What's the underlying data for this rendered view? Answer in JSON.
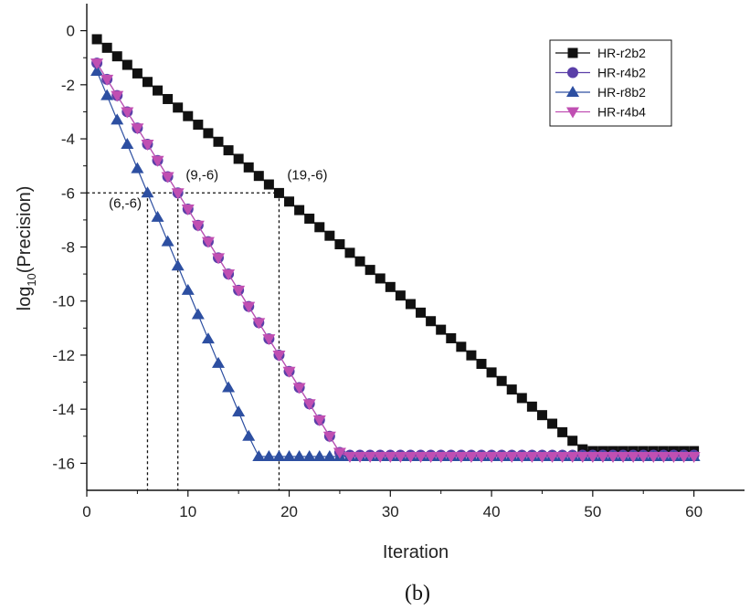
{
  "chart_data": {
    "type": "line",
    "title": "",
    "xlabel": "Iteration",
    "ylabel_main": "log",
    "ylabel_sub": "10",
    "ylabel_rest": "(Precision)",
    "xlim": [
      0,
      65
    ],
    "ylim": [
      -17,
      1
    ],
    "xticks": [
      0,
      10,
      20,
      30,
      40,
      50,
      60
    ],
    "yticks": [
      0,
      -2,
      -4,
      -6,
      -8,
      -10,
      -12,
      -14,
      -16
    ],
    "grid": false,
    "legend_position": "top-right",
    "caption": "(b)",
    "series": [
      {
        "name": "HR-r2b2",
        "color": "#111111",
        "marker": "square",
        "slope": -0.316,
        "intercept": 0.0,
        "floor": -15.55,
        "x_start": 1,
        "x_end": 60
      },
      {
        "name": "HR-r4b2",
        "color": "#5a3fa8",
        "marker": "circle",
        "slope": -0.6,
        "intercept": -0.6,
        "floor": -15.7,
        "x_start": 1,
        "x_end": 60
      },
      {
        "name": "HR-r8b2",
        "color": "#2d4fa1",
        "marker": "triangle-up",
        "slope": -0.9,
        "intercept": -0.6,
        "floor": -15.75,
        "x_start": 1,
        "x_end": 60
      },
      {
        "name": "HR-r4b4",
        "color": "#c04fb2",
        "marker": "triangle-down",
        "slope": -0.6,
        "intercept": -0.6,
        "floor": -15.75,
        "x_start": 1,
        "x_end": 60
      }
    ],
    "annotations": [
      {
        "text": "(6,-6)",
        "x": 6,
        "y": -6,
        "label_x": 3.8,
        "label_y": -6.55
      },
      {
        "text": "(9,-6)",
        "x": 9,
        "y": -6,
        "label_x": 11.4,
        "label_y": -5.5
      },
      {
        "text": "(19,-6)",
        "x": 19,
        "y": -6,
        "label_x": 21.8,
        "label_y": -5.5
      }
    ]
  }
}
